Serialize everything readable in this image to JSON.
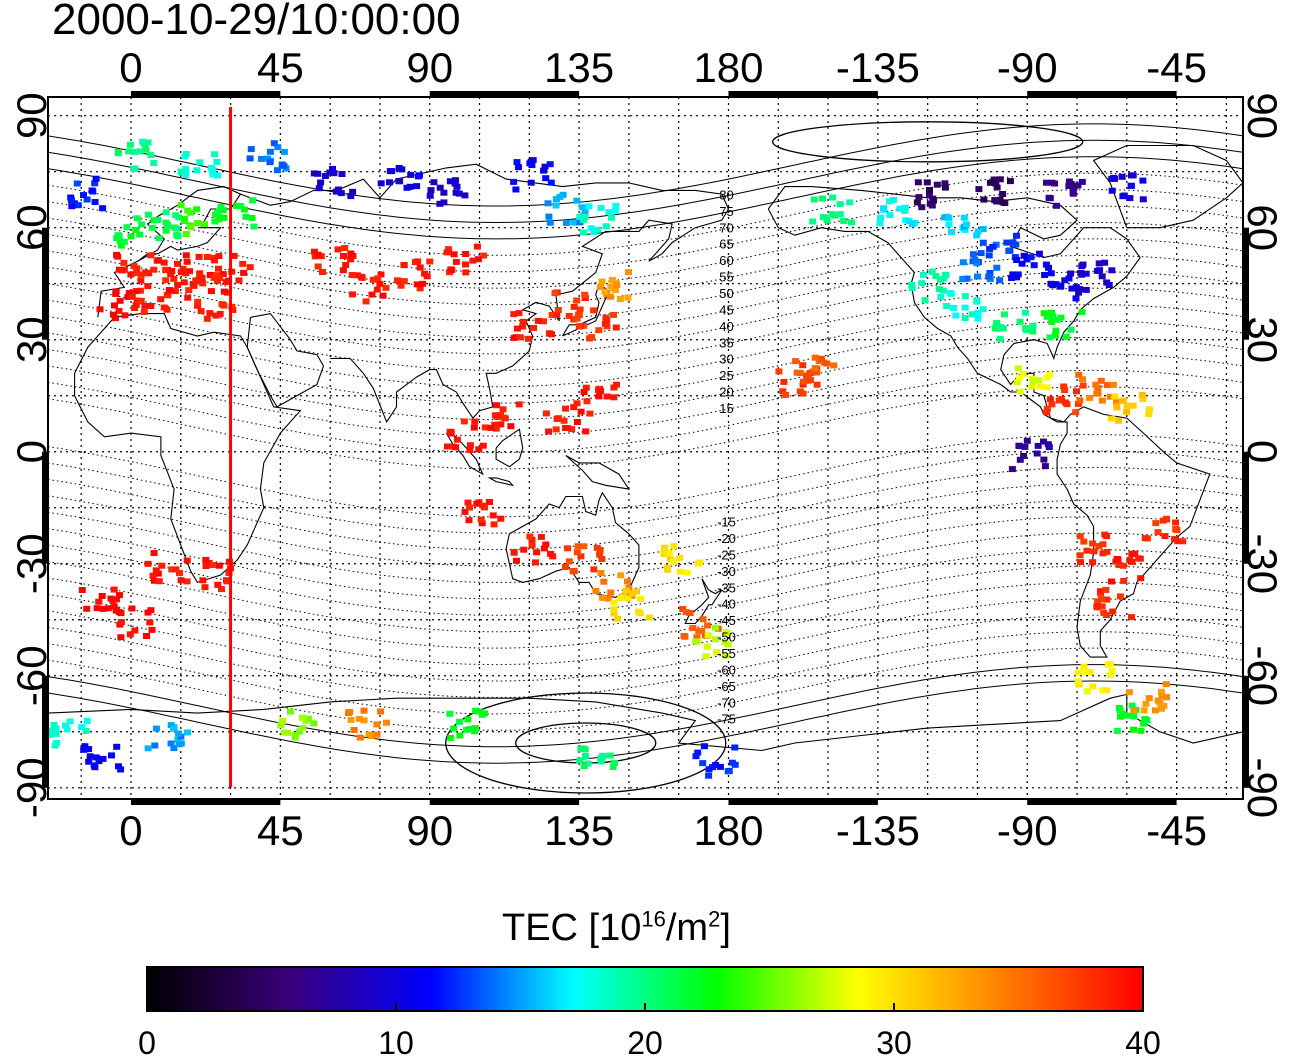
{
  "title": "2000-10-29/10:00:00",
  "map": {
    "x_ticks": [
      "0",
      "45",
      "90",
      "135",
      "180",
      "-135",
      "-90",
      "-45"
    ],
    "x_tick_lons": [
      0,
      45,
      90,
      135,
      180,
      225,
      270,
      315
    ],
    "y_ticks": [
      "90",
      "60",
      "30",
      "0",
      "-30",
      "-60",
      "-90"
    ],
    "y_tick_lats": [
      90,
      60,
      30,
      0,
      -30,
      -60,
      -90
    ],
    "lon_range": [
      -25,
      335
    ],
    "lat_range": [
      -93,
      95
    ],
    "marker_line_lon": 30,
    "marker_line_color": "#ff0000",
    "contour_labels_north": [
      "80",
      "75",
      "70",
      "65",
      "60",
      "55",
      "50",
      "45",
      "40",
      "35",
      "30",
      "25",
      "20",
      "15"
    ],
    "contour_labels_south": [
      "-15",
      "-20",
      "-25",
      "-30",
      "-35",
      "-40",
      "-45",
      "-50",
      "-55",
      "-60",
      "-65",
      "-70",
      "-75"
    ],
    "contour_label_lon": 180
  },
  "colorbar": {
    "label_prefix": "TEC  [10",
    "label_exp1": "16",
    "label_mid": "/m",
    "label_exp2": "2",
    "label_suffix": "]",
    "ticks": [
      "0",
      "10",
      "20",
      "30",
      "40"
    ],
    "tick_values": [
      0,
      10,
      20,
      30,
      40
    ],
    "range": [
      0,
      40
    ],
    "stops": [
      "#000000",
      "#3a007a",
      "#0000ff",
      "#00ffff",
      "#00ff00",
      "#ffff00",
      "#ff8000",
      "#ff0000"
    ]
  },
  "tec_points": [
    {
      "lon": 0,
      "lat": 50,
      "v": 39
    },
    {
      "lon": 10,
      "lat": 50,
      "v": 39
    },
    {
      "lon": 20,
      "lat": 50,
      "v": 39
    },
    {
      "lon": 30,
      "lat": 50,
      "v": 39
    },
    {
      "lon": -5,
      "lat": 40,
      "v": 40
    },
    {
      "lon": 5,
      "lat": 42,
      "v": 39
    },
    {
      "lon": 15,
      "lat": 45,
      "v": 39
    },
    {
      "lon": 25,
      "lat": 40,
      "v": 39
    },
    {
      "lon": 0,
      "lat": 60,
      "v": 22
    },
    {
      "lon": 10,
      "lat": 62,
      "v": 21
    },
    {
      "lon": 20,
      "lat": 63,
      "v": 24
    },
    {
      "lon": 30,
      "lat": 65,
      "v": 22
    },
    {
      "lon": -15,
      "lat": 70,
      "v": 12
    },
    {
      "lon": 0,
      "lat": 80,
      "v": 20
    },
    {
      "lon": 20,
      "lat": 78,
      "v": 18
    },
    {
      "lon": 40,
      "lat": 80,
      "v": 14
    },
    {
      "lon": 60,
      "lat": 73,
      "v": 9
    },
    {
      "lon": 80,
      "lat": 75,
      "v": 10
    },
    {
      "lon": 95,
      "lat": 70,
      "v": 9
    },
    {
      "lon": 120,
      "lat": 75,
      "v": 11
    },
    {
      "lon": 130,
      "lat": 66,
      "v": 15
    },
    {
      "lon": 140,
      "lat": 63,
      "v": 18
    },
    {
      "lon": 70,
      "lat": 45,
      "v": 39
    },
    {
      "lon": 85,
      "lat": 48,
      "v": 39
    },
    {
      "lon": 100,
      "lat": 52,
      "v": 39
    },
    {
      "lon": 60,
      "lat": 52,
      "v": 39
    },
    {
      "lon": 120,
      "lat": 35,
      "v": 39
    },
    {
      "lon": 130,
      "lat": 40,
      "v": 38
    },
    {
      "lon": 140,
      "lat": 35,
      "v": 38
    },
    {
      "lon": 145,
      "lat": 45,
      "v": 33
    },
    {
      "lon": 110,
      "lat": 10,
      "v": 39
    },
    {
      "lon": 100,
      "lat": 5,
      "v": 39
    },
    {
      "lon": 130,
      "lat": 10,
      "v": 39
    },
    {
      "lon": 140,
      "lat": 15,
      "v": 39
    },
    {
      "lon": 105,
      "lat": -15,
      "v": 39
    },
    {
      "lon": 120,
      "lat": -25,
      "v": 39
    },
    {
      "lon": 135,
      "lat": -28,
      "v": 37
    },
    {
      "lon": 145,
      "lat": -35,
      "v": 34
    },
    {
      "lon": 150,
      "lat": -40,
      "v": 30
    },
    {
      "lon": 170,
      "lat": -45,
      "v": 36
    },
    {
      "lon": 175,
      "lat": -50,
      "v": 27
    },
    {
      "lon": 165,
      "lat": -28,
      "v": 30
    },
    {
      "lon": 10,
      "lat": -30,
      "v": 39
    },
    {
      "lon": 25,
      "lat": -32,
      "v": 39
    },
    {
      "lon": -10,
      "lat": -40,
      "v": 40
    },
    {
      "lon": 0,
      "lat": -45,
      "v": 40
    },
    {
      "lon": 200,
      "lat": 20,
      "v": 38
    },
    {
      "lon": 205,
      "lat": 22,
      "v": 36
    },
    {
      "lon": 210,
      "lat": 65,
      "v": 20
    },
    {
      "lon": 230,
      "lat": 65,
      "v": 17
    },
    {
      "lon": 250,
      "lat": 60,
      "v": 16
    },
    {
      "lon": 260,
      "lat": 55,
      "v": 13
    },
    {
      "lon": 270,
      "lat": 50,
      "v": 11
    },
    {
      "lon": 280,
      "lat": 45,
      "v": 10
    },
    {
      "lon": 290,
      "lat": 48,
      "v": 9
    },
    {
      "lon": 250,
      "lat": 40,
      "v": 18
    },
    {
      "lon": 265,
      "lat": 35,
      "v": 20
    },
    {
      "lon": 280,
      "lat": 35,
      "v": 22
    },
    {
      "lon": 240,
      "lat": 45,
      "v": 19
    },
    {
      "lon": 255,
      "lat": 50,
      "v": 14
    },
    {
      "lon": 240,
      "lat": 70,
      "v": 5
    },
    {
      "lon": 260,
      "lat": 70,
      "v": 4
    },
    {
      "lon": 280,
      "lat": 70,
      "v": 6
    },
    {
      "lon": 300,
      "lat": 72,
      "v": 10
    },
    {
      "lon": 270,
      "lat": 20,
      "v": 28
    },
    {
      "lon": 280,
      "lat": 15,
      "v": 38
    },
    {
      "lon": 290,
      "lat": 18,
      "v": 35
    },
    {
      "lon": 300,
      "lat": 12,
      "v": 31
    },
    {
      "lon": 270,
      "lat": 0,
      "v": 7
    },
    {
      "lon": 290,
      "lat": -25,
      "v": 38
    },
    {
      "lon": 300,
      "lat": -30,
      "v": 39
    },
    {
      "lon": 310,
      "lat": -20,
      "v": 38
    },
    {
      "lon": 295,
      "lat": -40,
      "v": 38
    },
    {
      "lon": 290,
      "lat": -60,
      "v": 29
    },
    {
      "lon": 300,
      "lat": -70,
      "v": 22
    },
    {
      "lon": 305,
      "lat": -65,
      "v": 33
    },
    {
      "lon": -20,
      "lat": -75,
      "v": 18
    },
    {
      "lon": 10,
      "lat": -75,
      "v": 15
    },
    {
      "lon": 50,
      "lat": -72,
      "v": 26
    },
    {
      "lon": 70,
      "lat": -72,
      "v": 34
    },
    {
      "lon": 100,
      "lat": -72,
      "v": 22
    },
    {
      "lon": 140,
      "lat": -80,
      "v": 20
    },
    {
      "lon": 175,
      "lat": -82,
      "v": 12
    },
    {
      "lon": -10,
      "lat": -82,
      "v": 11
    }
  ]
}
